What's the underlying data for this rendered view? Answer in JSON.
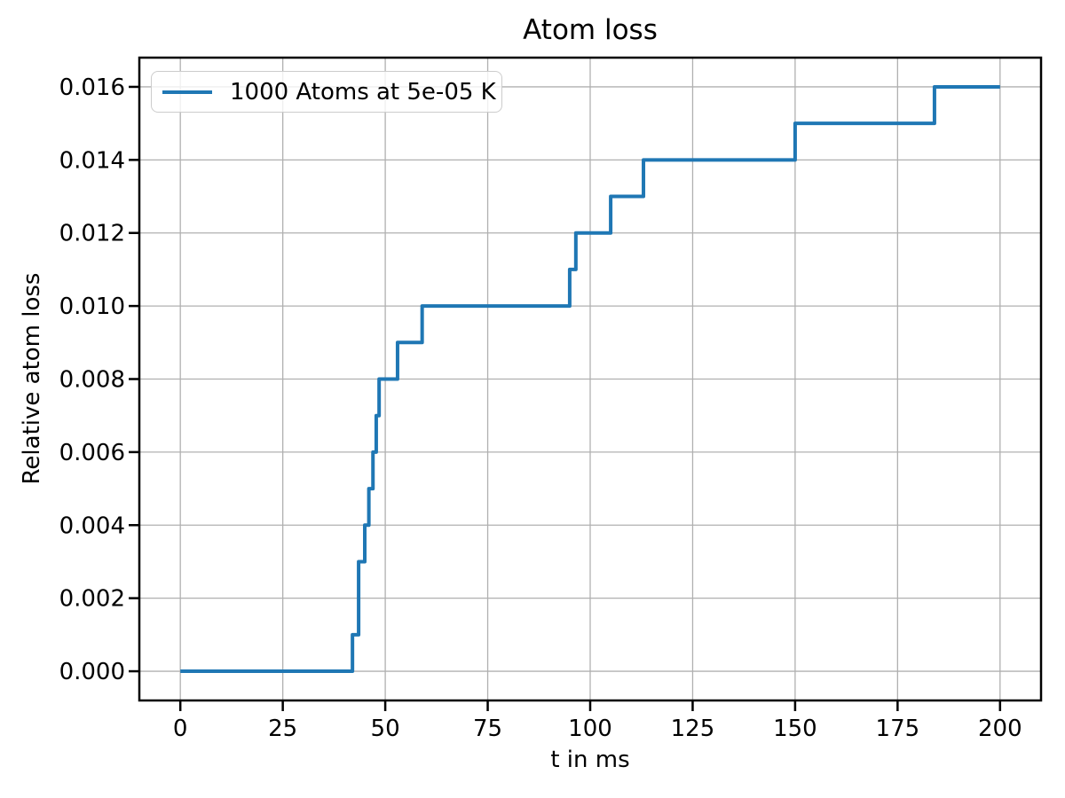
{
  "figure": {
    "background": "#ffffff",
    "frame_color": "#000000",
    "tick_color": "#000000"
  },
  "chart_data": {
    "type": "line",
    "step_mode": "post",
    "title": "Atom loss",
    "xlabel": "t in ms",
    "ylabel": "Relative atom loss",
    "xlim": [
      -10,
      210
    ],
    "ylim": [
      -0.0008,
      0.0168
    ],
    "xticks": [
      0,
      25,
      50,
      75,
      100,
      125,
      150,
      175,
      200
    ],
    "xtick_labels": [
      "0",
      "25",
      "50",
      "75",
      "100",
      "125",
      "150",
      "175",
      "200"
    ],
    "yticks": [
      0.0,
      0.002,
      0.004,
      0.006,
      0.008,
      0.01,
      0.012,
      0.014,
      0.016
    ],
    "ytick_labels": [
      "0.000",
      "0.002",
      "0.004",
      "0.006",
      "0.008",
      "0.010",
      "0.012",
      "0.014",
      "0.016"
    ],
    "grid": true,
    "grid_color": "#b0b0b0",
    "legend": {
      "position": "upper-left",
      "label": "1000 Atoms at 5e-05 K"
    },
    "series": [
      {
        "name": "1000 Atoms at 5e-05 K",
        "color": "#1f77b4",
        "x": [
          0,
          42,
          43.5,
          45,
          46,
          47,
          47.8,
          48.5,
          53,
          59,
          95,
          96.5,
          105,
          113,
          150,
          184,
          200
        ],
        "y": [
          0.0,
          0.001,
          0.003,
          0.004,
          0.005,
          0.006,
          0.007,
          0.008,
          0.009,
          0.01,
          0.011,
          0.012,
          0.013,
          0.014,
          0.015,
          0.016,
          0.016
        ]
      }
    ]
  }
}
